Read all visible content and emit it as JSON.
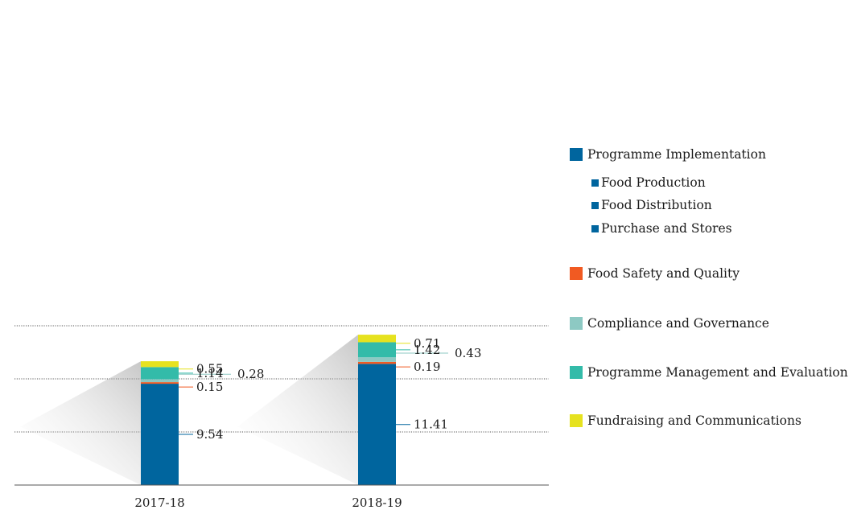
{
  "chart_data": {
    "type": "bar",
    "stacked": true,
    "ylim": [
      0,
      15
    ],
    "grid": true,
    "legend_position": "right",
    "categories": [
      "2017-18",
      "2018-19"
    ],
    "series": [
      {
        "name": "Programme Implementation",
        "color": "#00659e",
        "values": [
          9.54,
          11.41
        ]
      },
      {
        "name": "Food Safety and Quality",
        "color": "#f15a22",
        "values": [
          0.15,
          0.19
        ]
      },
      {
        "name": "Compliance and Governance",
        "color": "#8dc9c3",
        "values": [
          0.28,
          0.43
        ]
      },
      {
        "name": "Programme Management and Evaluation",
        "color": "#33bba9",
        "values": [
          1.14,
          1.42
        ]
      },
      {
        "name": "Fundraising and Communications",
        "color": "#e6e21f",
        "values": [
          0.55,
          0.71
        ]
      }
    ],
    "data_labels": [
      [
        "9.54",
        "11.41"
      ],
      [
        "0.15",
        "0.19"
      ],
      [
        "0.28",
        "0.43"
      ],
      [
        "1.14",
        "1.42"
      ],
      [
        "0.55",
        "0.71"
      ]
    ]
  },
  "legend": {
    "items": [
      {
        "label": "Programme Implementation",
        "color": "#00659e",
        "icon": "square"
      },
      {
        "label": "Food Safety and Quality",
        "color": "#f15a22",
        "icon": "square"
      },
      {
        "label": "Compliance and Governance",
        "color": "#8dc9c3",
        "icon": "square"
      },
      {
        "label": "Programme Management and Evaluation",
        "color": "#33bba9",
        "icon": "square"
      },
      {
        "label": "Fundraising and Communications",
        "color": "#e6e21f",
        "icon": "square"
      }
    ],
    "sub_items": [
      {
        "label": "Food Production",
        "color": "#00659e",
        "icon": "small-square"
      },
      {
        "label": "Food Distribution",
        "color": "#00659e",
        "icon": "small-square"
      },
      {
        "label": "Purchase and Stores",
        "color": "#00659e",
        "icon": "small-square"
      }
    ]
  }
}
